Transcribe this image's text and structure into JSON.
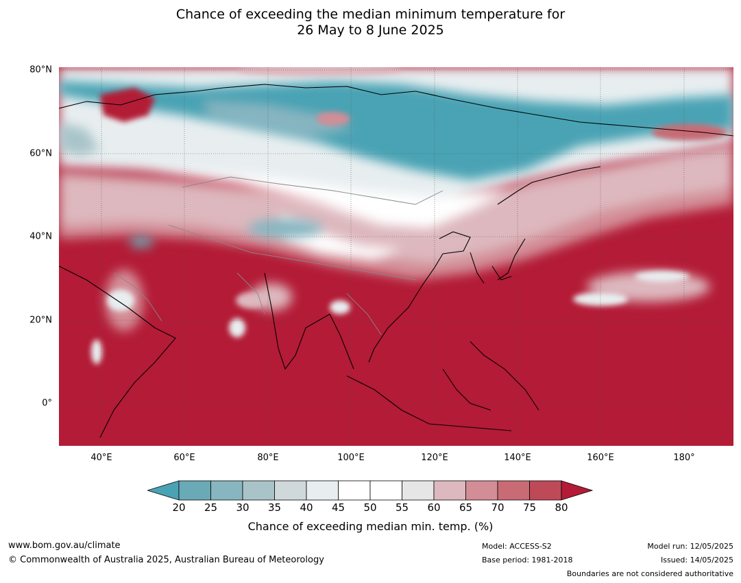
{
  "title": {
    "line1": "Chance of exceeding the median minimum temperature for",
    "line2": "26 May to 8 June 2025"
  },
  "map": {
    "lat_labels": [
      "80°N",
      "60°N",
      "40°N",
      "20°N",
      "0°"
    ],
    "lon_labels": [
      "40°E",
      "60°E",
      "80°E",
      "100°E",
      "120°E",
      "140°E",
      "160°E",
      "180°"
    ]
  },
  "colorbar": {
    "ticks": [
      "20",
      "25",
      "30",
      "35",
      "40",
      "45",
      "50",
      "55",
      "60",
      "65",
      "70",
      "75",
      "80"
    ],
    "colors": [
      "#4aa3b4",
      "#6aaab6",
      "#87b6c1",
      "#a9c4c9",
      "#cfd9db",
      "#e8eef0",
      "#ffffff",
      "#ffffff",
      "#e6e6e6",
      "#ddb8be",
      "#d38d96",
      "#c96b75",
      "#be4a58",
      "#b31b36"
    ],
    "label": "Chance of exceeding median min. temp. (%)"
  },
  "footer": {
    "website": "www.bom.gov.au/climate",
    "copyright": "© Commonwealth of Australia 2025, Australian Bureau of Meteorology",
    "model": "Model: ACCESS-S2",
    "base_period": "Base period: 1981-2018",
    "model_run": "Model run: 12/05/2025",
    "issued": "Issued: 14/05/2025",
    "disclaimer": "Boundaries are not considered authoritative"
  }
}
